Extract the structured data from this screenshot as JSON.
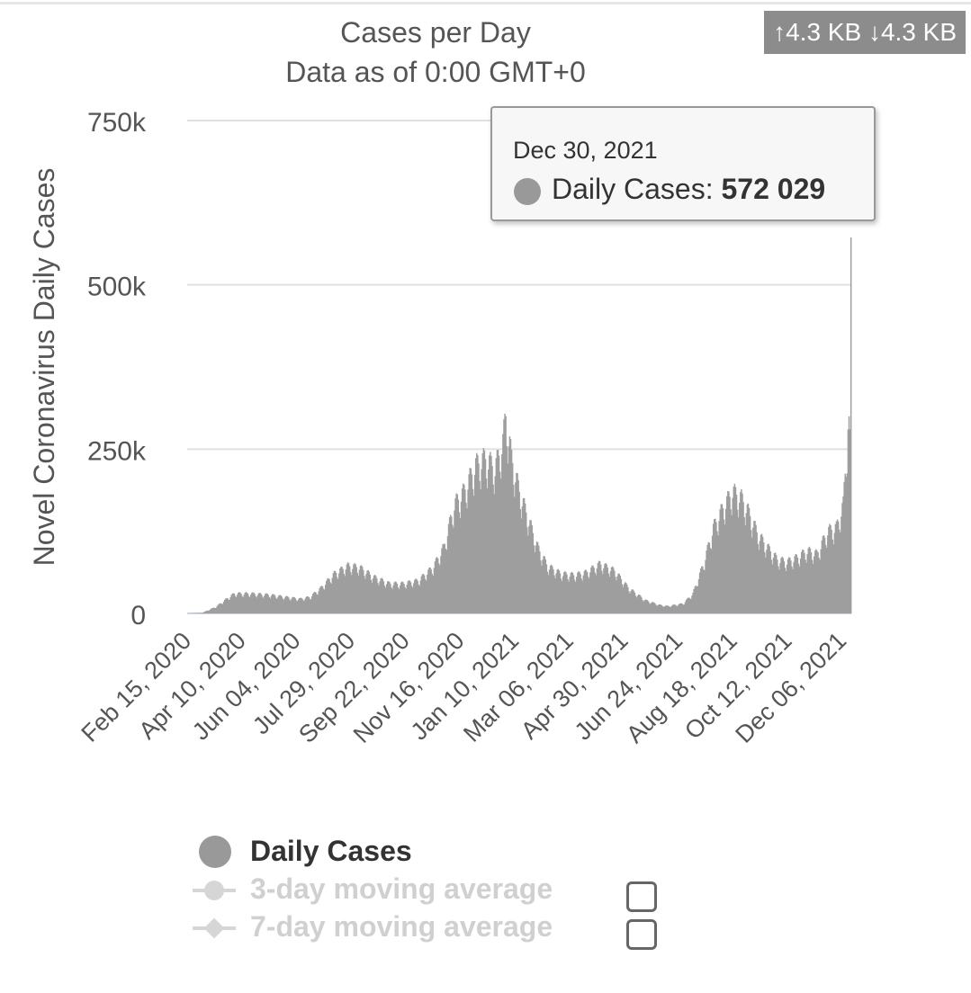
{
  "network": {
    "upload": "4.3 KB",
    "download": "4.3 KB"
  },
  "tooltip": {
    "date": "Dec 30, 2021",
    "series_label": "Daily Cases:",
    "value": "572 029"
  },
  "legend": {
    "daily": "Daily Cases",
    "ma3": "3-day moving average",
    "ma7": "7-day moving average"
  },
  "colors": {
    "bars": "#9e9e9e",
    "grid": "#e0e0e0",
    "axis_text": "#555555",
    "inactive_series": "#d6d6d6"
  },
  "chart_data": {
    "type": "bar",
    "title": "Cases per Day",
    "subtitle": "Data as of 0:00 GMT+0",
    "ylabel": "Novel Coronavirus Daily Cases",
    "xlabel": "",
    "ylim": [
      0,
      750000
    ],
    "yticks": [
      0,
      250000,
      500000,
      750000
    ],
    "ytick_labels": [
      "0",
      "250k",
      "500k",
      "750k"
    ],
    "x_start": "Feb 15, 2020",
    "x_end": "Dec 31, 2021",
    "xtick_labels": [
      "Feb 15, 2020",
      "Apr 10, 2020",
      "Jun 04, 2020",
      "Jul 29, 2020",
      "Sep 22, 2020",
      "Nov 16, 2020",
      "Jan 10, 2021",
      "Mar 06, 2021",
      "Apr 30, 2021",
      "Jun 24, 2021",
      "Aug 18, 2021",
      "Oct 12, 2021",
      "Dec 06, 2021"
    ],
    "grid": "horizontal",
    "series": [
      {
        "name": "Daily Cases",
        "anchors": [
          [
            "Feb 15, 2020",
            0
          ],
          [
            "Mar 01, 2020",
            1000
          ],
          [
            "Mar 15, 2020",
            10000
          ],
          [
            "Mar 26, 2020",
            22000
          ],
          [
            "Apr 03, 2020",
            30000
          ],
          [
            "Apr 20, 2020",
            30000
          ],
          [
            "May 10, 2020",
            28000
          ],
          [
            "May 25, 2020",
            25000
          ],
          [
            "Jun 10, 2020",
            22000
          ],
          [
            "Jun 20, 2020",
            25000
          ],
          [
            "Jul 01, 2020",
            38000
          ],
          [
            "Jul 15, 2020",
            60000
          ],
          [
            "Jul 29, 2020",
            72000
          ],
          [
            "Aug 10, 2020",
            70000
          ],
          [
            "Aug 25, 2020",
            55000
          ],
          [
            "Sep 10, 2020",
            45000
          ],
          [
            "Sep 25, 2020",
            45000
          ],
          [
            "Oct 10, 2020",
            50000
          ],
          [
            "Oct 25, 2020",
            70000
          ],
          [
            "Nov 05, 2020",
            100000
          ],
          [
            "Nov 16, 2020",
            165000
          ],
          [
            "Nov 26, 2020",
            185000
          ],
          [
            "Dec 08, 2020",
            225000
          ],
          [
            "Dec 18, 2020",
            235000
          ],
          [
            "Dec 28, 2020",
            220000
          ],
          [
            "Jan 05, 2021",
            260000
          ],
          [
            "Jan 08, 2021",
            300000
          ],
          [
            "Jan 14, 2021",
            235000
          ],
          [
            "Jan 22, 2021",
            185000
          ],
          [
            "Feb 01, 2021",
            140000
          ],
          [
            "Feb 10, 2021",
            100000
          ],
          [
            "Feb 20, 2021",
            72000
          ],
          [
            "Mar 06, 2021",
            60000
          ],
          [
            "Mar 20, 2021",
            58000
          ],
          [
            "Apr 01, 2021",
            62000
          ],
          [
            "Apr 15, 2021",
            75000
          ],
          [
            "Apr 30, 2021",
            65000
          ],
          [
            "May 15, 2021",
            38000
          ],
          [
            "Jun 01, 2021",
            20000
          ],
          [
            "Jun 15, 2021",
            13000
          ],
          [
            "Jun 24, 2021",
            11000
          ],
          [
            "Jul 10, 2021",
            15000
          ],
          [
            "Jul 20, 2021",
            30000
          ],
          [
            "Aug 01, 2021",
            80000
          ],
          [
            "Aug 10, 2021",
            130000
          ],
          [
            "Aug 20, 2021",
            160000
          ],
          [
            "Aug 30, 2021",
            185000
          ],
          [
            "Sep 08, 2021",
            175000
          ],
          [
            "Sep 15, 2021",
            155000
          ],
          [
            "Sep 25, 2021",
            120000
          ],
          [
            "Oct 05, 2021",
            100000
          ],
          [
            "Oct 15, 2021",
            82000
          ],
          [
            "Oct 25, 2021",
            78000
          ],
          [
            "Nov 05, 2021",
            85000
          ],
          [
            "Nov 15, 2021",
            95000
          ],
          [
            "Nov 25, 2021",
            90000
          ],
          [
            "Dec 06, 2021",
            125000
          ],
          [
            "Dec 15, 2021",
            130000
          ],
          [
            "Dec 22, 2021",
            165000
          ],
          [
            "Dec 26, 2021",
            260000
          ],
          [
            "Dec 28, 2021",
            300000
          ],
          [
            "Dec 29, 2021",
            280000
          ],
          [
            "Dec 30, 2021",
            572029
          ]
        ]
      },
      {
        "name": "3-day moving average",
        "visible": false
      },
      {
        "name": "7-day moving average",
        "visible": false
      }
    ]
  }
}
